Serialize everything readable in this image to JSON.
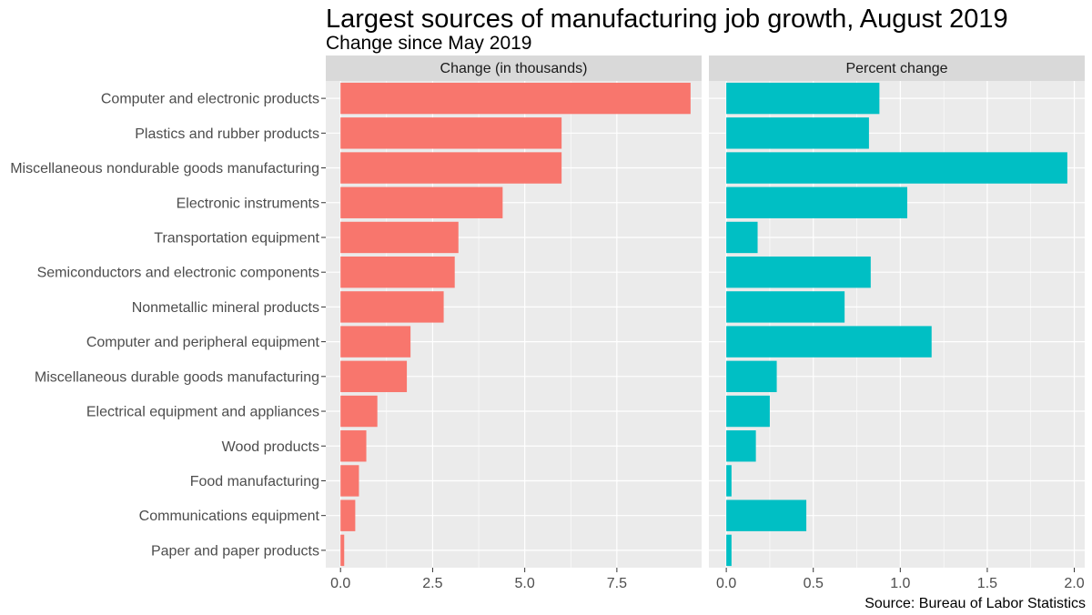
{
  "chart_data": {
    "type": "bar",
    "orientation": "horizontal",
    "title": "Largest sources of manufacturing job growth, August 2019",
    "subtitle": "Change since May 2019",
    "caption": "Source: Bureau of Labor Statistics",
    "categories": [
      "Computer and electronic products",
      "Plastics and rubber products",
      "Miscellaneous nondurable goods manufacturing",
      "Electronic instruments",
      "Transportation equipment",
      "Semiconductors and electronic components",
      "Nonmetallic mineral products",
      "Computer and peripheral equipment",
      "Miscellaneous durable goods manufacturing",
      "Electrical equipment and appliances",
      "Wood products",
      "Food manufacturing",
      "Communications equipment",
      "Paper and paper products"
    ],
    "grid": true,
    "panels": [
      {
        "name": "Change (in thousands)",
        "color": "#F8766D",
        "values": [
          9.5,
          6.0,
          6.0,
          4.4,
          3.2,
          3.1,
          2.8,
          1.9,
          1.8,
          1.0,
          0.7,
          0.5,
          0.4,
          0.1
        ],
        "xlim": [
          -0.4,
          9.8
        ],
        "ticks": [
          0.0,
          2.5,
          5.0,
          7.5
        ],
        "tick_labels": [
          "0.0",
          "2.5",
          "5.0",
          "7.5"
        ]
      },
      {
        "name": "Percent change",
        "color": "#00BFC4",
        "values": [
          0.88,
          0.82,
          1.96,
          1.04,
          0.18,
          0.83,
          0.68,
          1.18,
          0.29,
          0.25,
          0.17,
          0.03,
          0.46,
          0.03
        ],
        "xlim": [
          -0.1,
          2.06
        ],
        "ticks": [
          0.0,
          0.5,
          1.0,
          1.5,
          2.0
        ],
        "tick_labels": [
          "0.0",
          "0.5",
          "1.0",
          "1.5",
          "2.0"
        ]
      }
    ]
  }
}
